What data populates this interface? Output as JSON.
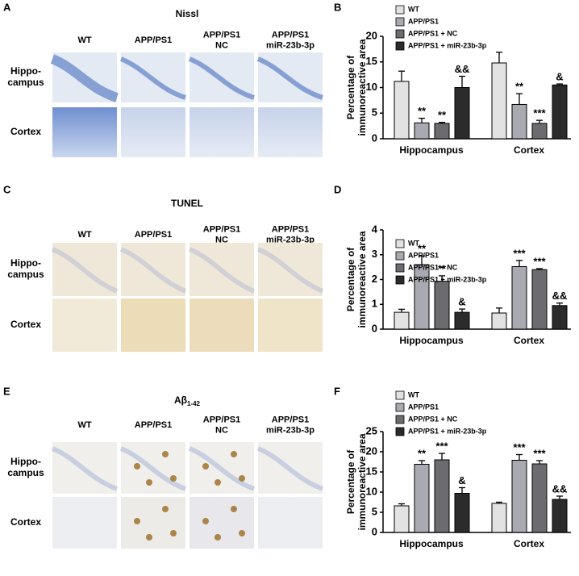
{
  "panels": [
    {
      "letter": "A",
      "title": "Nissl",
      "columns": [
        [
          "WT"
        ],
        [
          "APP/PS1"
        ],
        [
          "APP/PS1",
          "NC"
        ],
        [
          "APP/PS1",
          "miR-23b-3p"
        ]
      ],
      "rows": [
        [
          "Hippo-",
          "campus"
        ],
        [
          "Cortex"
        ]
      ]
    },
    {
      "letter": "C",
      "title": "TUNEL",
      "columns": [
        [
          "WT"
        ],
        [
          "APP/PS1"
        ],
        [
          "APP/PS1",
          "NC"
        ],
        [
          "APP/PS1",
          "miR-23b-3p"
        ]
      ],
      "rows": [
        [
          "Hippo-",
          "campus"
        ],
        [
          "Cortex"
        ]
      ]
    },
    {
      "letter": "E",
      "title": "Aβ",
      "title_subscript": "1-42",
      "columns": [
        [
          "WT"
        ],
        [
          "APP/PS1"
        ],
        [
          "APP/PS1",
          "NC"
        ],
        [
          "APP/PS1",
          "miR-23b-3p"
        ]
      ],
      "rows": [
        [
          "Hippo-",
          "campus"
        ],
        [
          "Cortex"
        ]
      ]
    }
  ],
  "chart_data": [
    {
      "type": "bar",
      "letter": "B",
      "ylabel": [
        "Percentage of",
        "immunoreactive area"
      ],
      "categories": [
        "Hippocampus",
        "Cortex"
      ],
      "ylim": [
        0,
        20
      ],
      "yticks": [
        0,
        5,
        10,
        15,
        20
      ],
      "series": [
        {
          "name": "WT",
          "color": "#e2e2e2",
          "values": [
            11.2,
            14.8
          ],
          "errors": [
            2.0,
            2.1
          ],
          "annotations": [
            null,
            null
          ]
        },
        {
          "name": "APP/PS1",
          "color": "#a9a9b1",
          "values": [
            3.1,
            6.7
          ],
          "errors": [
            0.9,
            2.1
          ],
          "annotations": [
            "**",
            "**"
          ]
        },
        {
          "name": "APP/PS1 + NC",
          "color": "#6b6b70",
          "values": [
            3.0,
            3.0
          ],
          "errors": [
            0.2,
            0.6
          ],
          "annotations": [
            "**",
            "***"
          ]
        },
        {
          "name": "APP/PS1 + miR-23b-3p",
          "color": "#2b2b2b",
          "values": [
            10.0,
            10.5
          ],
          "errors": [
            2.2,
            0.2
          ],
          "annotations": [
            "&&",
            "&"
          ]
        }
      ]
    },
    {
      "type": "bar",
      "letter": "D",
      "ylabel": [
        "Percentage of",
        "immunoreactive area"
      ],
      "categories": [
        "Hippocampus",
        "Cortex"
      ],
      "ylim": [
        0,
        4
      ],
      "yticks": [
        0,
        1,
        2,
        3,
        4
      ],
      "series": [
        {
          "name": "WT",
          "color": "#e2e2e2",
          "values": [
            0.68,
            0.65
          ],
          "errors": [
            0.12,
            0.2
          ],
          "annotations": [
            null,
            null
          ]
        },
        {
          "name": "APP/PS1",
          "color": "#a9a9b1",
          "values": [
            2.6,
            2.52
          ],
          "errors": [
            0.35,
            0.25
          ],
          "annotations": [
            "**",
            "***"
          ]
        },
        {
          "name": "APP/PS1 + NC",
          "color": "#6b6b70",
          "values": [
            1.93,
            2.4
          ],
          "errors": [
            0.22,
            0.04
          ],
          "annotations": [
            "**",
            "***"
          ]
        },
        {
          "name": "APP/PS1 + miR-23b-3p",
          "color": "#2b2b2b",
          "values": [
            0.68,
            0.95
          ],
          "errors": [
            0.13,
            0.1
          ],
          "annotations": [
            "&",
            "&&"
          ]
        }
      ]
    },
    {
      "type": "bar",
      "letter": "F",
      "ylabel": [
        "Percentage of",
        "immunoreactive area"
      ],
      "categories": [
        "Hippocampus",
        "Cortex"
      ],
      "ylim": [
        0,
        25
      ],
      "yticks": [
        0,
        5,
        10,
        15,
        20,
        25
      ],
      "series": [
        {
          "name": "WT",
          "color": "#e2e2e2",
          "values": [
            6.6,
            7.2
          ],
          "errors": [
            0.5,
            0.3
          ],
          "annotations": [
            null,
            null
          ]
        },
        {
          "name": "APP/PS1",
          "color": "#a9a9b1",
          "values": [
            16.9,
            17.9
          ],
          "errors": [
            0.9,
            1.4
          ],
          "annotations": [
            "**",
            "***"
          ]
        },
        {
          "name": "APP/PS1 + NC",
          "color": "#6b6b70",
          "values": [
            18.0,
            17.0
          ],
          "errors": [
            1.6,
            0.8
          ],
          "annotations": [
            "***",
            "***"
          ]
        },
        {
          "name": "APP/PS1 + miR-23b-3p",
          "color": "#2b2b2b",
          "values": [
            9.7,
            8.2
          ],
          "errors": [
            1.4,
            0.8
          ],
          "annotations": [
            "&",
            "&&"
          ]
        }
      ]
    }
  ]
}
